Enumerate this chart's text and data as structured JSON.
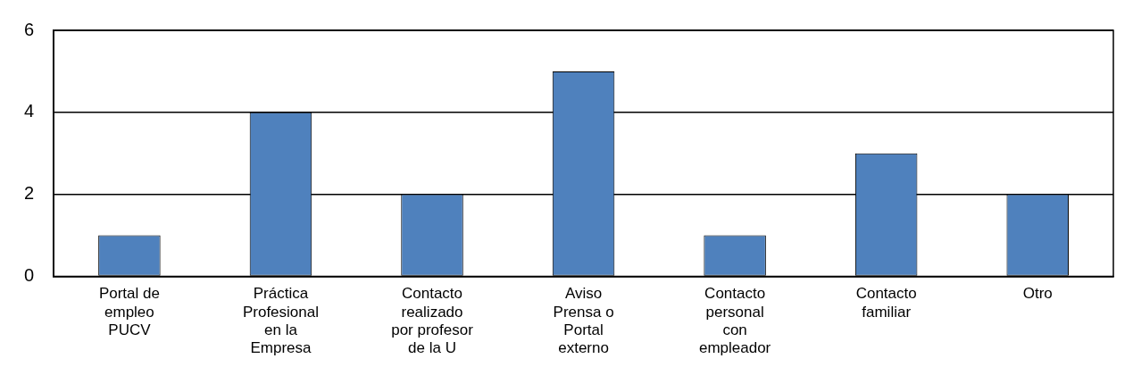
{
  "chart_data": {
    "type": "bar",
    "categories": [
      "Portal de empleo PUCV",
      "Práctica Profesional en la Empresa",
      "Contacto realizado por profesor de la U",
      "Aviso Prensa o Portal externo",
      "Contacto personal con empleador",
      "Contacto familiar",
      "Otro"
    ],
    "values": [
      1,
      4,
      2,
      5,
      1,
      3,
      2
    ],
    "color": "#4f81bd",
    "ylim": [
      0,
      6
    ],
    "yticks": [
      0,
      2,
      4,
      6
    ],
    "grid": "y",
    "legend": false
  }
}
